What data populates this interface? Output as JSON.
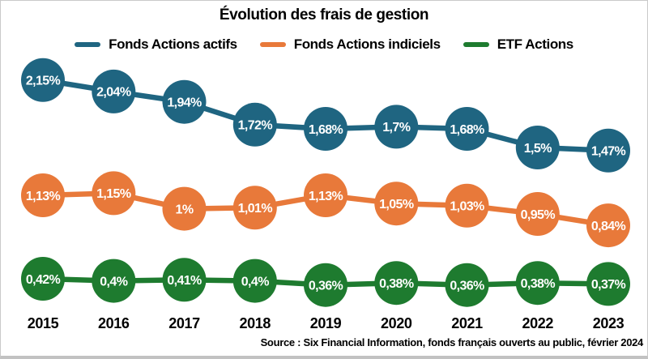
{
  "title": "Évolution des frais de gestion",
  "source": "Source : Six Financial Information, fonds français ouverts au public, février 2024",
  "chart_data": {
    "type": "line",
    "title": "Évolution des frais de gestion",
    "x": [
      "2015",
      "2016",
      "2017",
      "2018",
      "2019",
      "2020",
      "2021",
      "2022",
      "2023"
    ],
    "unit": "%",
    "grid": false,
    "legend_position": "top",
    "point_labels": "inside-markers",
    "series": [
      {
        "name": "Fonds Actions actifs",
        "color": "#1f6581",
        "values": [
          2.15,
          2.04,
          1.94,
          1.72,
          1.68,
          1.7,
          1.68,
          1.5,
          1.47
        ],
        "labels": [
          "2,15%",
          "2,04%",
          "1,94%",
          "1,72%",
          "1,68%",
          "1,7%",
          "1,68%",
          "1,5%",
          "1,47%"
        ]
      },
      {
        "name": "Fonds Actions indiciels",
        "color": "#e8793a",
        "values": [
          1.13,
          1.15,
          1.0,
          1.01,
          1.13,
          1.05,
          1.03,
          0.95,
          0.84
        ],
        "labels": [
          "1,13%",
          "1,15%",
          "1%",
          "1,01%",
          "1,13%",
          "1,05%",
          "1,03%",
          "0,95%",
          "0,84%"
        ]
      },
      {
        "name": "ETF Actions",
        "color": "#1e7b2f",
        "values": [
          0.42,
          0.4,
          0.41,
          0.4,
          0.36,
          0.38,
          0.36,
          0.38,
          0.37
        ],
        "labels": [
          "0,42%",
          "0,4%",
          "0,41%",
          "0,4%",
          "0,36%",
          "0,38%",
          "0,36%",
          "0,38%",
          "0,37%"
        ]
      }
    ]
  }
}
